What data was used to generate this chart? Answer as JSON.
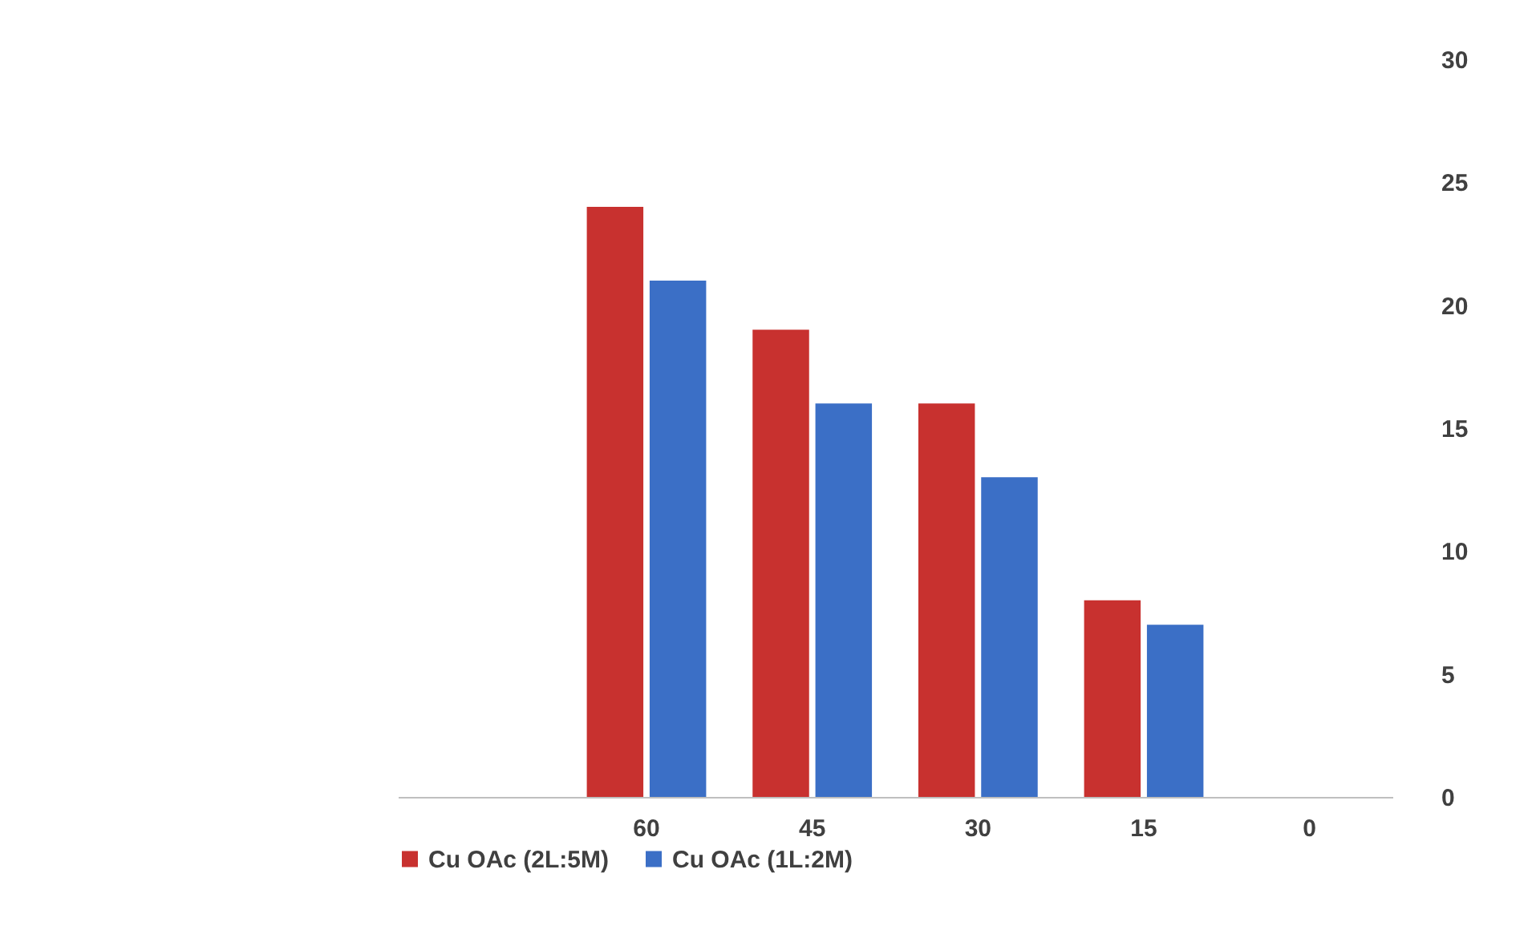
{
  "chart_data": {
    "type": "bar",
    "categories": [
      null,
      "60",
      "45",
      "30",
      "15",
      "0"
    ],
    "series": [
      {
        "name": "Cu OAc (2L:5M)",
        "color": "#c8312f",
        "values": [
          null,
          24,
          19,
          16,
          8,
          null
        ]
      },
      {
        "name": "Cu OAc (1L:2M)",
        "color": "#3b6fc6",
        "values": [
          null,
          21,
          16,
          13,
          7,
          null
        ]
      }
    ],
    "ylim": [
      0,
      30
    ],
    "yticks": [
      0,
      5,
      10,
      15,
      20,
      25,
      30
    ],
    "grid": false,
    "legend": "bottom"
  }
}
